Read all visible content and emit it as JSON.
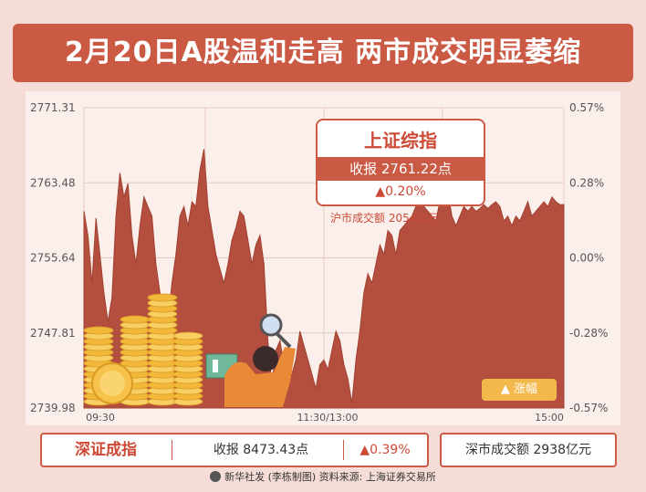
{
  "title": "2月20日A股温和走高  两市成交明显萎缩",
  "sh": {
    "name": "上证综指",
    "close_label": "收报  2761.22点",
    "change_label": "▲0.20%",
    "turnover_label": "沪市成交额  2054亿元"
  },
  "sz": {
    "name": "深证成指",
    "close_label": "收报   8473.43点",
    "change_label": "▲0.39%",
    "turnover_label": "深市成交额   2938亿元"
  },
  "legend_label": "▲ 涨幅",
  "credit": "新华社发 (李栋制图)   资料来源: 上海证券交易所",
  "colors": {
    "banner": "#cb5a45",
    "area": "#b44f3f",
    "accent": "#cc4a35",
    "legend": "#f3b84a"
  },
  "chart_data": {
    "type": "area",
    "title": "上证综指",
    "x_ticks": [
      "09:30",
      "11:30/13:00",
      "15:00"
    ],
    "y_left_ticks": [
      "2771.31",
      "2763.48",
      "2755.64",
      "2747.81",
      "2739.98"
    ],
    "y_right_ticks": [
      "0.57%",
      "0.28%",
      "0.00%",
      "-0.28%",
      "-0.57%"
    ],
    "ylim": [
      2739.98,
      2771.31
    ],
    "x_range": [
      0,
      240
    ],
    "x": [
      0,
      2,
      4,
      6,
      8,
      10,
      12,
      14,
      16,
      18,
      20,
      22,
      24,
      26,
      28,
      30,
      32,
      34,
      36,
      38,
      40,
      42,
      44,
      46,
      48,
      50,
      52,
      54,
      56,
      58,
      60,
      62,
      64,
      66,
      68,
      70,
      72,
      74,
      76,
      78,
      80,
      82,
      84,
      86,
      88,
      90,
      92,
      94,
      96,
      98,
      100,
      102,
      104,
      106,
      108,
      110,
      112,
      114,
      116,
      118,
      120,
      122,
      124,
      126,
      128,
      130,
      132,
      134,
      136,
      138,
      140,
      142,
      144,
      146,
      148,
      150,
      152,
      154,
      156,
      158,
      160,
      162,
      164,
      166,
      168,
      170,
      172,
      174,
      176,
      178,
      180,
      182,
      184,
      186,
      188,
      190,
      192,
      194,
      196,
      198,
      200,
      202,
      204,
      206,
      208,
      210,
      212,
      214,
      216,
      218,
      220,
      222,
      224,
      226,
      228,
      230,
      232,
      234,
      236,
      238,
      240
    ],
    "values": [
      2760.5,
      2758.0,
      2753.0,
      2759.8,
      2756.0,
      2752.0,
      2749.0,
      2751.5,
      2760.0,
      2764.5,
      2762.0,
      2763.4,
      2758.0,
      2755.0,
      2759.0,
      2762.0,
      2761.0,
      2760.0,
      2755.0,
      2752.0,
      2750.5,
      2749.0,
      2753.0,
      2756.0,
      2760.0,
      2761.0,
      2759.0,
      2761.5,
      2761.0,
      2764.8,
      2767.0,
      2761.0,
      2758.5,
      2756.0,
      2754.5,
      2753.0,
      2755.0,
      2757.5,
      2758.8,
      2760.5,
      2760.0,
      2757.5,
      2755.0,
      2757.0,
      2758.0,
      2755.0,
      2747.0,
      2742.5,
      2746.0,
      2747.0,
      2744.5,
      2743.0,
      2743.5,
      2745.0,
      2748.0,
      2746.5,
      2745.0,
      2743.5,
      2742.0,
      2744.5,
      2745.0,
      2744.0,
      2746.0,
      2748.0,
      2747.0,
      2744.5,
      2743.0,
      2740.5,
      2745.0,
      2748.0,
      2752.0,
      2754.0,
      2753.0,
      2755.0,
      2757.0,
      2756.0,
      2758.5,
      2758.0,
      2756.0,
      2758.5,
      2759.0,
      2759.5,
      2760.0,
      2761.0,
      2762.0,
      2761.0,
      2760.5,
      2760.0,
      2759.5,
      2761.5,
      2762.0,
      2762.5,
      2760.0,
      2759.0,
      2760.0,
      2761.0,
      2760.5,
      2761.0,
      2760.5,
      2760.8,
      2761.2,
      2760.8,
      2761.2,
      2761.5,
      2761.0,
      2759.5,
      2760.0,
      2759.0,
      2760.0,
      2759.5,
      2760.5,
      2761.5,
      2760.0,
      2760.5,
      2761.0,
      2761.5,
      2761.0,
      2762.0,
      2761.5,
      2761.2,
      2761.22
    ],
    "grid": true,
    "legend": "bottom-right"
  }
}
